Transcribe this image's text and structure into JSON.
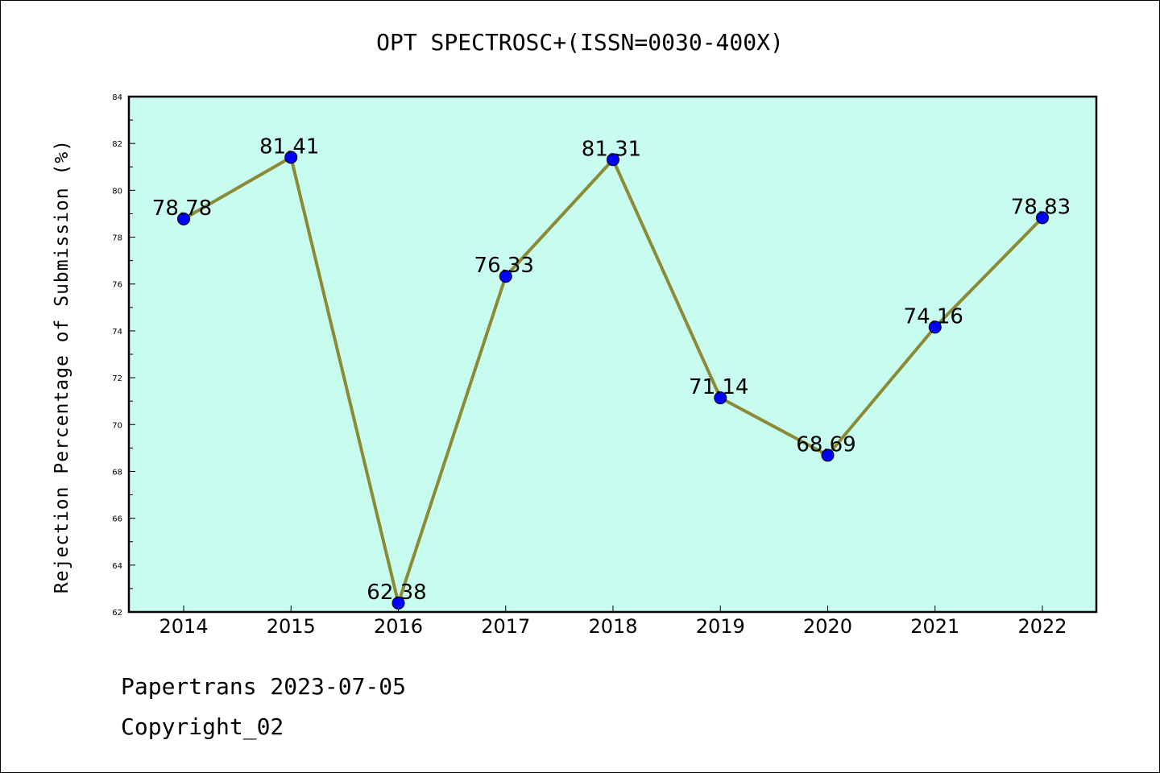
{
  "chart_data": {
    "type": "line",
    "title": "OPT SPECTROSC+(ISSN=0030-400X)",
    "xlabel": "",
    "ylabel": "Rejection Percentage of Submission (%)",
    "x": [
      "2014",
      "2015",
      "2016",
      "2017",
      "2018",
      "2019",
      "2020",
      "2021",
      "2022"
    ],
    "series": [
      {
        "values": [
          78.78,
          81.41,
          62.38,
          76.33,
          81.31,
          71.14,
          68.69,
          74.16,
          78.83
        ],
        "labels": [
          "78.78",
          "81.41",
          "62.38",
          "76.33",
          "81.31",
          "71.14",
          "68.69",
          "74.16",
          "78.83"
        ]
      }
    ],
    "ylim": [
      62,
      84
    ],
    "yticks": [
      "62",
      "64",
      "66",
      "68",
      "70",
      "72",
      "74",
      "76",
      "78",
      "80",
      "82",
      "84"
    ],
    "grid": false,
    "colors": {
      "plot_background": "#c8fcee",
      "line": "#8b8a36",
      "marker": "#0000ff"
    }
  },
  "footer": {
    "line1": "Papertrans 2023-07-05",
    "line2": "Copyright_02"
  }
}
